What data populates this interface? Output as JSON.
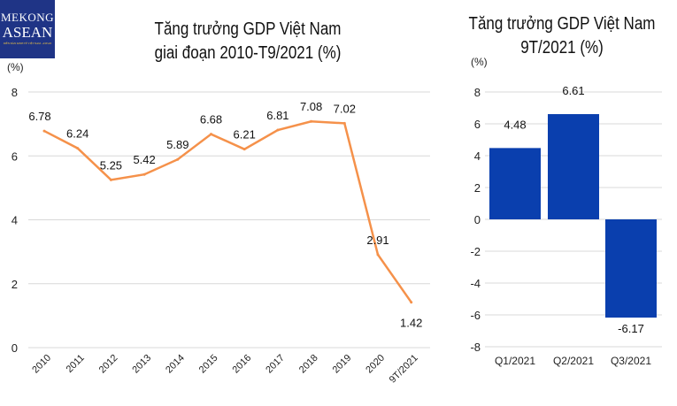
{
  "logo": {
    "line1": "MEKONG",
    "line2": "ASEAN",
    "tagline": "DIỄN ĐÀN KINH TẾ VIỆT NAM - ASEAN"
  },
  "chart_data": [
    {
      "type": "line",
      "title": "Tăng trưởng GDP Việt Nam giai đoạn 2010-T9/2021 (%)",
      "title_lines": [
        "Tăng trưởng GDP Việt Nam",
        "giai đoạn 2010-T9/2021 (%)"
      ],
      "ylabel": "(%)",
      "categories": [
        "2010",
        "2011",
        "2012",
        "2013",
        "2014",
        "2015",
        "2016",
        "2017",
        "2018",
        "2019",
        "2020",
        "9T/2021"
      ],
      "values": [
        6.78,
        6.24,
        5.25,
        5.42,
        5.89,
        6.68,
        6.21,
        6.81,
        7.08,
        7.02,
        2.91,
        1.42
      ],
      "ylim": [
        0,
        8
      ],
      "yticks": [
        0,
        2,
        4,
        6,
        8
      ],
      "grid": true,
      "color": "#f5914a"
    },
    {
      "type": "bar",
      "title": "Tăng trưởng GDP Việt Nam 9T/2021 (%)",
      "title_lines": [
        "Tăng trưởng GDP Việt Nam",
        "9T/2021 (%)"
      ],
      "ylabel": "(%)",
      "categories": [
        "Q1/2021",
        "Q2/2021",
        "Q3/2021"
      ],
      "values": [
        4.48,
        6.61,
        -6.17
      ],
      "ylim": [
        -8,
        8
      ],
      "yticks": [
        -8,
        -6,
        -4,
        -2,
        0,
        2,
        4,
        6,
        8
      ],
      "grid": true,
      "color": "#0a3fae"
    }
  ]
}
